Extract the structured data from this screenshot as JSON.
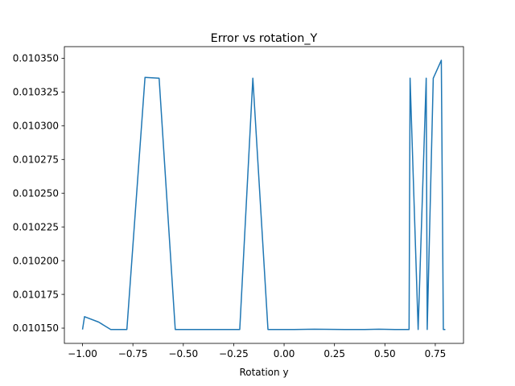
{
  "chart_data": {
    "type": "line",
    "title": "Error vs rotation_Y",
    "xlabel": "Rotation y",
    "ylabel": "",
    "xlim": [
      -1.09,
      0.89
    ],
    "ylim": [
      0.0101387,
      0.0103586
    ],
    "grid": false,
    "x_ticks": [
      -1.0,
      -0.75,
      -0.5,
      -0.25,
      0.0,
      0.25,
      0.5,
      0.75
    ],
    "x_tick_labels": [
      "−1.00",
      "−0.75",
      "−0.50",
      "−0.25",
      "0.00",
      "0.25",
      "0.50",
      "0.75"
    ],
    "y_ticks": [
      0.01015,
      0.010175,
      0.0102,
      0.010225,
      0.01025,
      0.010275,
      0.0103,
      0.010325,
      0.01035
    ],
    "y_tick_labels": [
      "0.010150",
      "0.010175",
      "0.010200",
      "0.010225",
      "0.010250",
      "0.010275",
      "0.010300",
      "0.010325",
      "0.010350"
    ],
    "series": [
      {
        "name": "error",
        "color": "#1f77b4",
        "x": [
          -1.0,
          -0.99,
          -0.92,
          -0.86,
          -0.78,
          -0.69,
          -0.62,
          -0.54,
          -0.45,
          -0.38,
          -0.22,
          -0.155,
          -0.08,
          0.05,
          0.15,
          0.3,
          0.4,
          0.47,
          0.55,
          0.62,
          0.625,
          0.665,
          0.705,
          0.71,
          0.74,
          0.78,
          0.79,
          0.8
        ],
        "y": [
          0.010149,
          0.0101585,
          0.0101545,
          0.010149,
          0.010149,
          0.0103358,
          0.0103352,
          0.010149,
          0.010149,
          0.010149,
          0.010149,
          0.0103352,
          0.010149,
          0.010149,
          0.0101492,
          0.010149,
          0.010149,
          0.0101492,
          0.010149,
          0.010149,
          0.0103352,
          0.010149,
          0.0103352,
          0.010149,
          0.0103352,
          0.0103485,
          0.010149,
          0.010149
        ]
      }
    ]
  }
}
